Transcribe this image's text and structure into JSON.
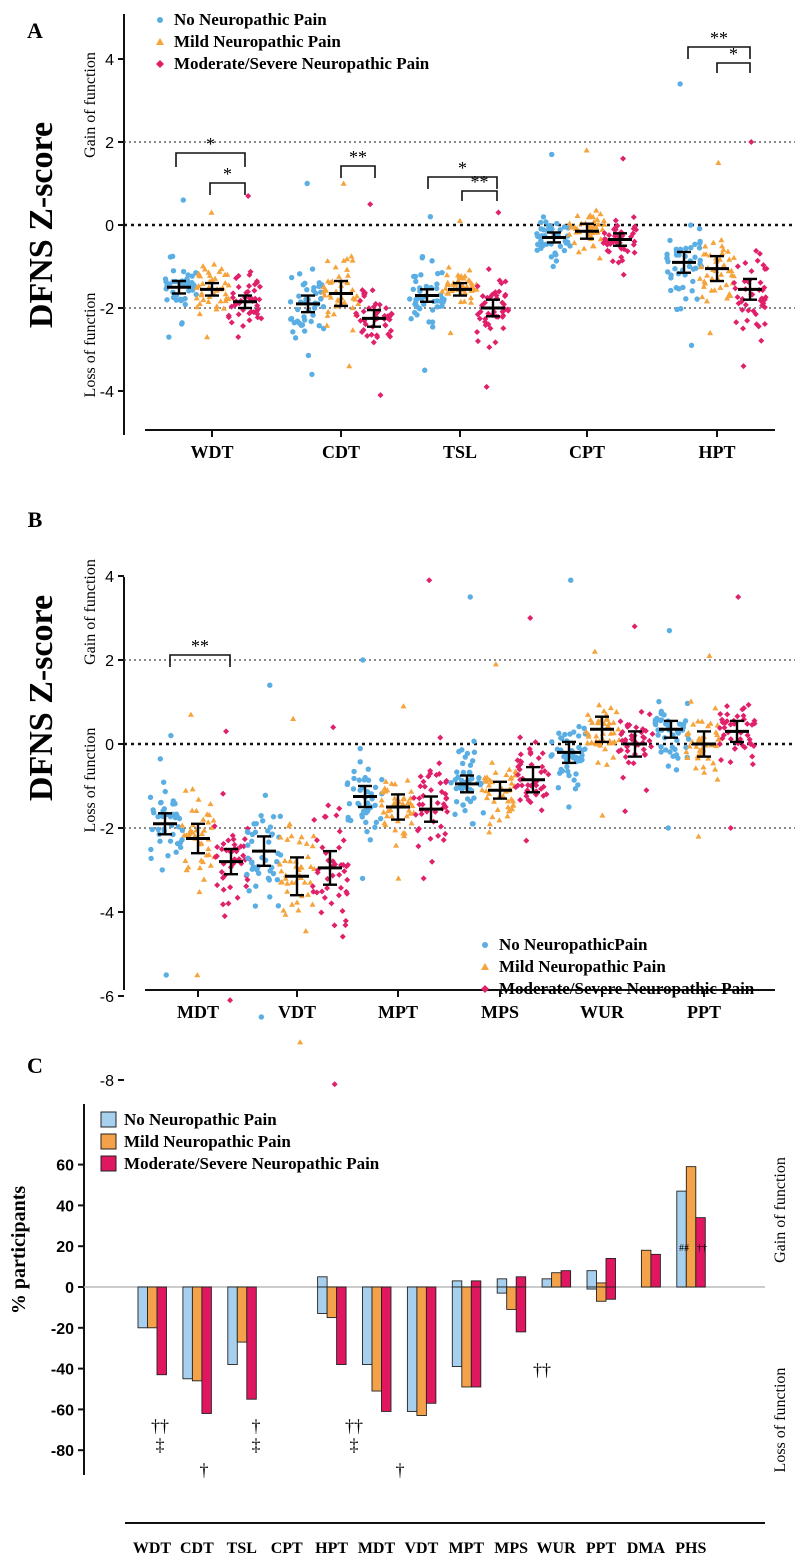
{
  "colors": {
    "none": "#5aaee3",
    "mild": "#f5a33a",
    "moderate": "#e0206a",
    "bar_none": "#a7cfee",
    "bar_mild": "#f4a24a",
    "bar_moderate": "#e01760"
  },
  "panel_a": {
    "letter": "A",
    "ylabel": "DFNS Z-score",
    "gain_label": "Gain of function",
    "loss_label": "Loss of function",
    "legend": [
      "No Neuropathic Pain",
      "Mild Neuropathic Pain",
      "Moderate/Severe Neuropathic Pain"
    ],
    "yticks": [
      "4",
      "2",
      "0",
      "-2",
      "-4"
    ],
    "categories": [
      "WDT",
      "CDT",
      "TSL",
      "CPT",
      "HPT"
    ],
    "sig_labels": [
      "*",
      "*",
      "**",
      "*",
      "**",
      "**",
      "*"
    ]
  },
  "panel_b": {
    "letter": "B",
    "ylabel": "DFNS Z-score",
    "gain_label": "Gain of function",
    "loss_label": "Loss of function",
    "legend": [
      "No NeuropathicPain",
      "Mild Neuropathic Pain",
      "Moderate/Severe Neuropathic Pain"
    ],
    "yticks": [
      "4",
      "2",
      "0",
      "-2",
      "-4",
      "-6",
      "-8"
    ],
    "categories": [
      "MDT",
      "VDT",
      "MPT",
      "MPS",
      "WUR",
      "PPT"
    ],
    "sig_labels": [
      "**"
    ]
  },
  "panel_c": {
    "letter": "C",
    "ylabel": "% participants",
    "gain_label": "Gain of function",
    "loss_label": "Loss of function",
    "legend": [
      "No Neuropathic Pain",
      "Mild Neuropathic Pain",
      "Moderate/Severe Neuropathic Pain"
    ],
    "yticks": [
      "60",
      "40",
      "20",
      "0",
      "-20",
      "-40",
      "-60",
      "-80"
    ],
    "categories": [
      "WDT",
      "CDT",
      "TSL",
      "CPT",
      "HPT",
      "MDT",
      "VDT",
      "MPT",
      "MPS",
      "WUR",
      "PPT",
      "DMA",
      "PHS"
    ],
    "annotations": [
      "††",
      "‡",
      "†",
      "†",
      "‡",
      "††",
      "‡",
      "†",
      "††",
      "##",
      "††"
    ]
  },
  "chart_data": [
    {
      "type": "scatter",
      "title": "",
      "ylabel": "DFNS Z-score",
      "ylim": [
        -5,
        5
      ],
      "categories": [
        "WDT",
        "CDT",
        "TSL",
        "CPT",
        "HPT"
      ],
      "series": [
        {
          "name": "No Neuropathic Pain",
          "mean": [
            -1.5,
            -1.9,
            -1.7,
            -0.3,
            -0.9
          ],
          "ci": [
            0.15,
            0.2,
            0.15,
            0.12,
            0.25
          ],
          "min": [
            -2.7,
            -3.6,
            -3.5,
            -1.0,
            -2.9
          ],
          "max": [
            0.6,
            1.0,
            0.2,
            1.7,
            3.4
          ]
        },
        {
          "name": "Mild Neuropathic Pain",
          "mean": [
            -1.55,
            -1.65,
            -1.55,
            -0.15,
            -1.05
          ],
          "ci": [
            0.15,
            0.3,
            0.15,
            0.18,
            0.3
          ],
          "min": [
            -2.7,
            -3.4,
            -2.6,
            -0.8,
            -2.6
          ],
          "max": [
            0.3,
            1.0,
            0.1,
            1.8,
            1.5
          ]
        },
        {
          "name": "Moderate/Severe Neuropathic Pain",
          "mean": [
            -1.85,
            -2.25,
            -2.0,
            -0.35,
            -1.55
          ],
          "ci": [
            0.15,
            0.2,
            0.2,
            0.15,
            0.25
          ],
          "min": [
            -2.7,
            -4.1,
            -3.9,
            -1.2,
            -3.4
          ],
          "max": [
            0.7,
            0.5,
            0.3,
            1.6,
            2.0
          ]
        }
      ]
    },
    {
      "type": "scatter",
      "title": "",
      "ylabel": "DFNS Z-score",
      "ylim": [
        -9,
        5
      ],
      "categories": [
        "MDT",
        "VDT",
        "MPT",
        "MPS",
        "WUR",
        "PPT"
      ],
      "series": [
        {
          "name": "No NeuropathicPain",
          "mean": [
            -1.9,
            -2.55,
            -1.25,
            -0.95,
            -0.2,
            0.35
          ],
          "ci": [
            0.25,
            0.35,
            0.25,
            0.2,
            0.25,
            0.2
          ],
          "min": [
            -5.5,
            -6.5,
            -3.2,
            -1.9,
            -1.5,
            -2.0
          ],
          "max": [
            0.2,
            1.4,
            2.0,
            3.5,
            3.9,
            2.7
          ]
        },
        {
          "name": "Mild Neuropathic Pain",
          "mean": [
            -2.25,
            -3.15,
            -1.5,
            -1.1,
            0.35,
            0.0
          ],
          "ci": [
            0.35,
            0.45,
            0.3,
            0.2,
            0.3,
            0.3
          ],
          "min": [
            -5.5,
            -7.1,
            -3.2,
            -2.1,
            -1.7,
            -2.2
          ],
          "max": [
            0.7,
            0.6,
            0.9,
            1.9,
            2.2,
            2.1
          ]
        },
        {
          "name": "Moderate/Severe Neuropathic Pain",
          "mean": [
            -2.8,
            -2.95,
            -1.55,
            -0.85,
            0.0,
            0.3
          ],
          "ci": [
            0.3,
            0.4,
            0.3,
            0.3,
            0.3,
            0.25
          ],
          "min": [
            -6.1,
            -8.1,
            -3.2,
            -2.3,
            -1.6,
            -2.0
          ],
          "max": [
            0.3,
            0.4,
            3.9,
            3.0,
            2.8,
            3.5
          ]
        }
      ]
    },
    {
      "type": "bar",
      "title": "",
      "ylabel": "% participants",
      "ylim": [
        -80,
        60
      ],
      "categories": [
        "WDT",
        "CDT",
        "TSL",
        "CPT",
        "HPT",
        "MDT",
        "VDT",
        "MPT",
        "MPS",
        "WUR",
        "PPT",
        "DMA",
        "PHS"
      ],
      "series": [
        {
          "name": "No Neuropathic Pain",
          "gain": [
            0,
            0,
            0,
            0,
            5,
            0,
            0,
            3,
            4,
            4,
            8,
            0,
            47
          ],
          "loss": [
            -20,
            -45,
            -38,
            0,
            -13,
            -38,
            -61,
            -39,
            -3,
            0,
            -1,
            0,
            0
          ]
        },
        {
          "name": "Mild Neuropathic Pain",
          "gain": [
            0,
            0,
            0,
            0,
            0,
            0,
            0,
            0,
            0,
            7,
            2,
            18,
            59
          ],
          "loss": [
            -20,
            -46,
            -27,
            0,
            -15,
            -51,
            -63,
            -49,
            -11,
            0,
            -7,
            0,
            0
          ]
        },
        {
          "name": "Moderate/Severe Neuropathic Pain",
          "gain": [
            0,
            0,
            0,
            0,
            0,
            0,
            0,
            3,
            5,
            8,
            14,
            16,
            34
          ],
          "loss": [
            -43,
            -62,
            -55,
            0,
            -38,
            -61,
            -57,
            -49,
            -22,
            0,
            -6,
            0,
            0
          ]
        }
      ]
    }
  ]
}
